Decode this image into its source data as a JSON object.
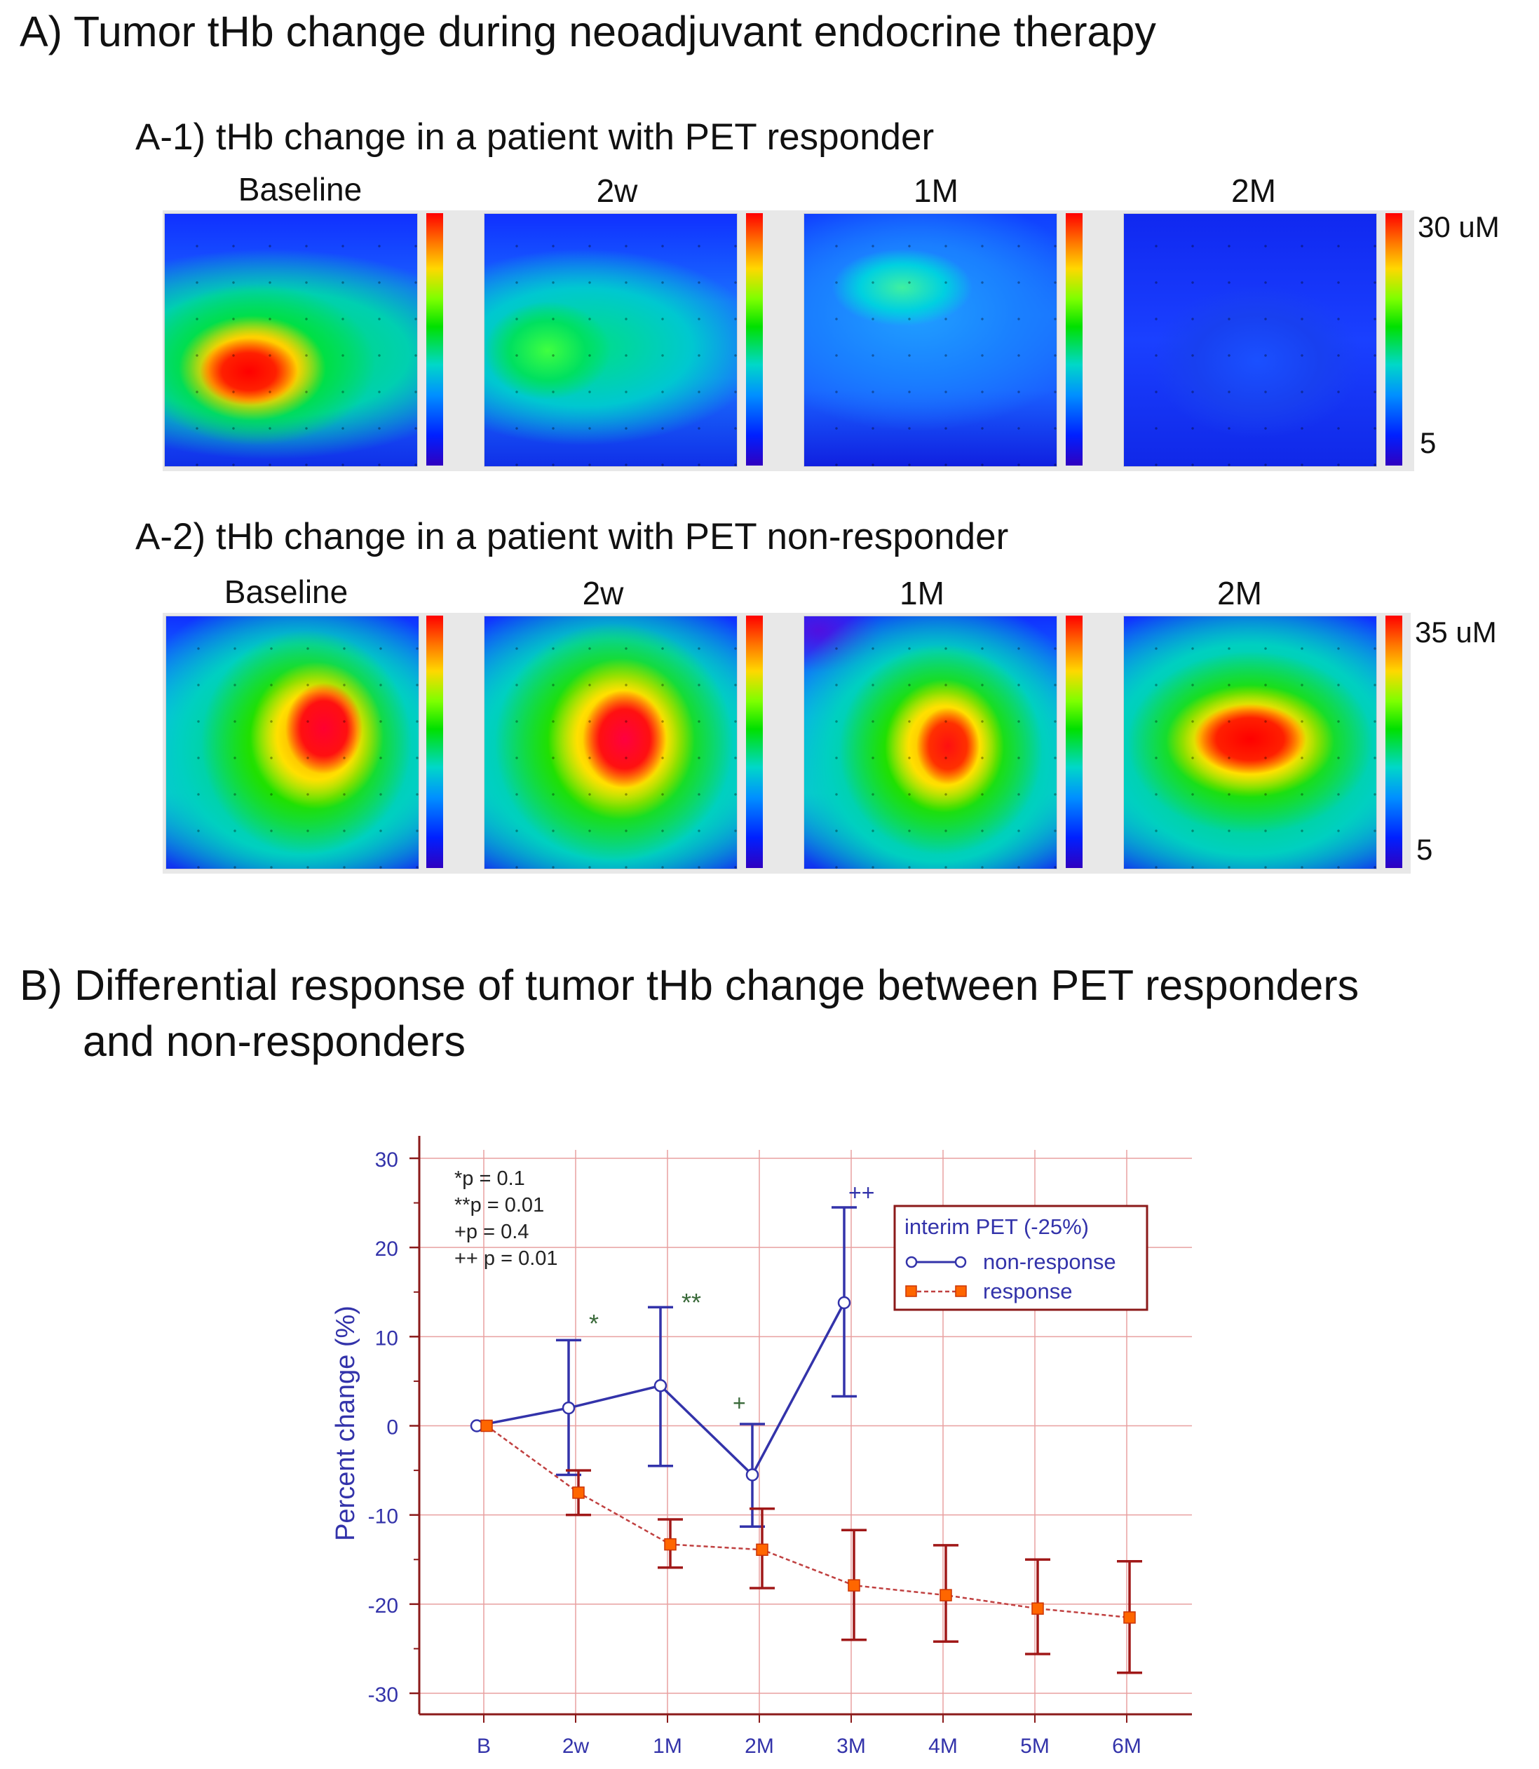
{
  "section_a": {
    "title": "A) Tumor tHb change during neoadjuvant endocrine therapy",
    "a1": {
      "title": "A-1) tHb change in a patient with PET responder",
      "panels": [
        "Baseline",
        "2w",
        "1M",
        "2M"
      ],
      "colorbar_max": "30  uM",
      "colorbar_min": "5"
    },
    "a2": {
      "title": "A-2) tHb change in a patient with PET non-responder",
      "panels": [
        "Baseline",
        "2w",
        "1M",
        "2M"
      ],
      "colorbar_max": "35  uM",
      "colorbar_min": "5"
    }
  },
  "section_b": {
    "title_line1": "B) Differential response of tumor tHb change between PET responders",
    "title_line2": "and non-responders"
  },
  "chart_data": {
    "type": "line",
    "title": "",
    "xlabel": "",
    "ylabel": "Percent change  (%)",
    "categories": [
      "B",
      "2w",
      "1M",
      "2M",
      "3M",
      "4M",
      "5M",
      "6M"
    ],
    "ylim": [
      -30,
      30
    ],
    "yticks": [
      30,
      20,
      10,
      0,
      -10,
      -20,
      -30
    ],
    "grid": true,
    "legend": {
      "title": "interim PET (-25%)",
      "position": "top-right"
    },
    "series": [
      {
        "name": "non-response",
        "color": "#3333aa",
        "marker": "open-circle",
        "values": [
          0,
          2,
          4.5,
          -5.5,
          13.8,
          null,
          null,
          null
        ],
        "err_low": [
          0,
          -5.5,
          -4.5,
          -11.3,
          3.3,
          null,
          null,
          null
        ],
        "err_high": [
          0,
          9.6,
          13.3,
          0.2,
          24.5,
          null,
          null,
          null
        ]
      },
      {
        "name": "response",
        "color": "#ff6600",
        "line_color": "#c04040",
        "marker": "filled-square",
        "values": [
          0,
          -7.5,
          -13.3,
          -13.9,
          -17.9,
          -19,
          -20.5,
          -21.5
        ],
        "err_low": [
          0,
          -10,
          -15.9,
          -18.2,
          -24,
          -24.2,
          -25.6,
          -27.7
        ],
        "err_high": [
          0,
          -5,
          -10.5,
          -9.3,
          -11.7,
          -13.4,
          -15,
          -15.2
        ]
      }
    ],
    "annotations": {
      "stats": [
        "*p = 0.1",
        "**p = 0.01",
        "+p = 0.4",
        "++ p = 0.01"
      ],
      "markers": [
        {
          "category": "2w",
          "text": "*"
        },
        {
          "category": "1M",
          "text": "**"
        },
        {
          "category": "2M",
          "text": "+"
        },
        {
          "category": "3M",
          "text": "++"
        }
      ]
    }
  }
}
